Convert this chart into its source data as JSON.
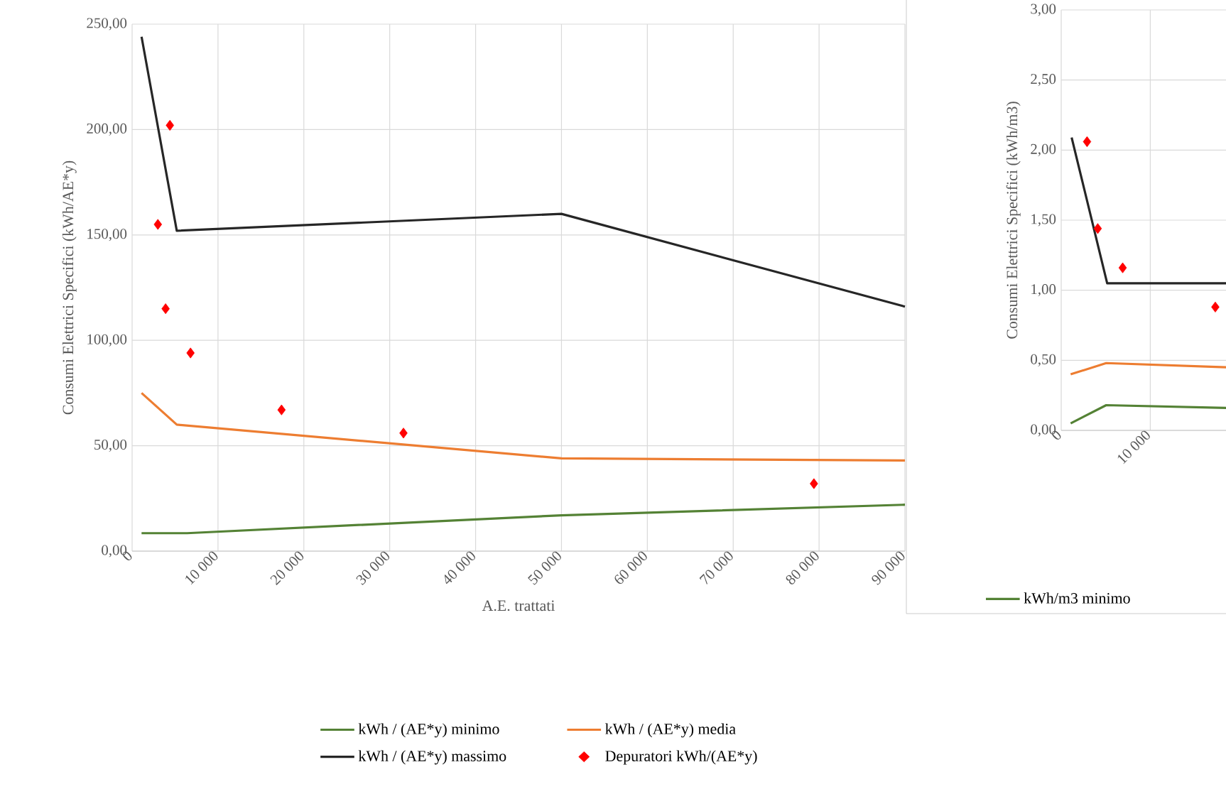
{
  "chart_data": [
    {
      "type": "line",
      "xlabel": "A.E. trattati",
      "ylabel": "Consumi Elettrici Specifici (kWh/AE*y)",
      "xlim": [
        0,
        90000
      ],
      "ylim": [
        0,
        250
      ],
      "xticks": [
        0,
        {
          "value": 10000,
          "label": "10 000"
        },
        {
          "value": 20000,
          "label": "20 000"
        },
        {
          "value": 30000,
          "label": "30 000"
        },
        {
          "value": 40000,
          "label": "40 000"
        },
        {
          "value": 50000,
          "label": "50 000"
        },
        {
          "value": 60000,
          "label": "60 000"
        },
        {
          "value": 70000,
          "label": "70 000"
        },
        {
          "value": 80000,
          "label": "80 000"
        },
        {
          "value": 90000,
          "label": "90 000"
        }
      ],
      "yticks": [
        {
          "value": 0,
          "label": "0,00"
        },
        {
          "value": 50,
          "label": "50,00"
        },
        {
          "value": 100,
          "label": "100,00"
        },
        {
          "value": 150,
          "label": "150,00"
        },
        {
          "value": 200,
          "label": "200,00"
        },
        {
          "value": 250,
          "label": "250,00"
        }
      ],
      "grid": true,
      "legend": "bottom",
      "series": [
        {
          "name": "kWh / (AE*y) minimo",
          "color": "#548235",
          "x": [
            1100,
            6400,
            50000,
            90000
          ],
          "values": [
            8.5,
            8.5,
            17,
            22
          ]
        },
        {
          "name": "kWh / (AE*y) media",
          "color": "#ed7d31",
          "x": [
            1100,
            5200,
            50000,
            90000
          ],
          "values": [
            75,
            60,
            44,
            43
          ]
        },
        {
          "name": "kWh / (AE*y) massimo",
          "color": "#262626",
          "x": [
            1100,
            5200,
            50000,
            90000
          ],
          "values": [
            244,
            152,
            160,
            116
          ]
        },
        {
          "name": "Depuratori kWh/(AE*y)",
          "type": "scatter",
          "marker": "diamond",
          "color": "#ff0000",
          "x": [
            4400,
            3000,
            3900,
            6800,
            17400,
            31600,
            79400
          ],
          "values": [
            202,
            155,
            115,
            94,
            67,
            56,
            32
          ]
        }
      ]
    },
    {
      "type": "line",
      "ylabel": "Consumi Elettrici Specifici (kWh/m3)",
      "xlim": [
        0,
        18500
      ],
      "ylim": [
        0,
        3
      ],
      "xticks": [
        0,
        {
          "value": 10000,
          "label": "10 000"
        }
      ],
      "yticks": [
        {
          "value": 0,
          "label": "0,00"
        },
        {
          "value": 0.5,
          "label": "0,50"
        },
        {
          "value": 1,
          "label": "1,00"
        },
        {
          "value": 1.5,
          "label": "1,50"
        },
        {
          "value": 2,
          "label": "2,00"
        },
        {
          "value": 2.5,
          "label": "2,50"
        },
        {
          "value": 3,
          "label": "3,00"
        }
      ],
      "grid": true,
      "legend": "bottom",
      "series": [
        {
          "name": "kWh/m3 minimo",
          "color": "#548235",
          "x": [
            1060,
            5050,
            18500
          ],
          "values": [
            0.05,
            0.18,
            0.16
          ]
        },
        {
          "color": "#ed7d31",
          "x": [
            1060,
            5050,
            18500
          ],
          "values": [
            0.4,
            0.48,
            0.45
          ]
        },
        {
          "color": "#262626",
          "x": [
            1170,
            5160,
            18500
          ],
          "values": [
            2.09,
            1.05,
            1.05
          ]
        },
        {
          "type": "scatter",
          "marker": "diamond",
          "color": "#ff0000",
          "x": [
            2900,
            4100,
            6900,
            17300
          ],
          "values": [
            2.06,
            1.44,
            1.16,
            0.88
          ]
        }
      ]
    }
  ]
}
